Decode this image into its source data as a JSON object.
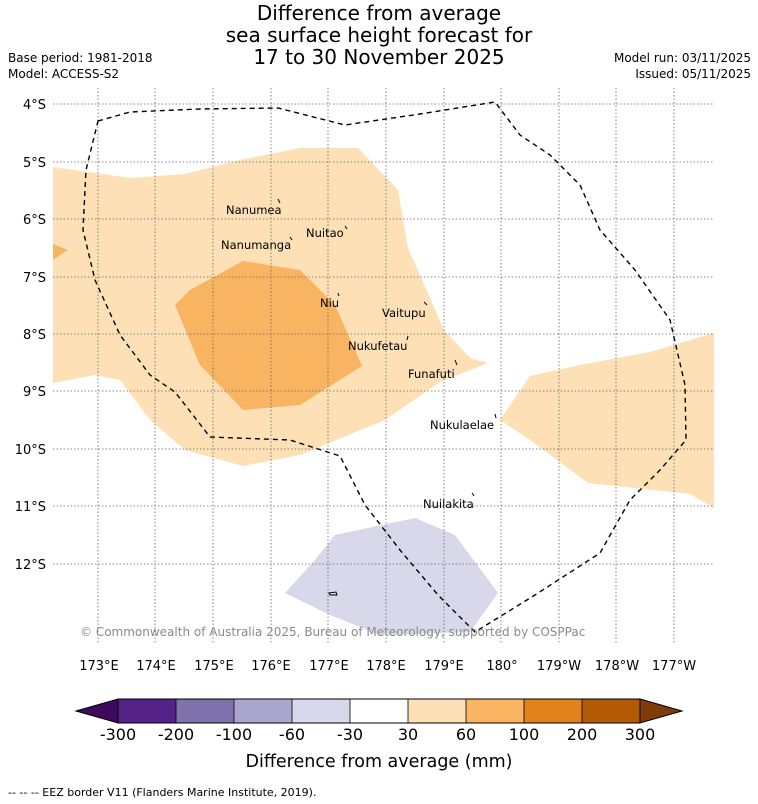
{
  "title": {
    "line1": "Difference from average",
    "line2": "sea surface height forecast for",
    "line3": "17 to 30 November 2025"
  },
  "meta": {
    "base_period": "Base period: 1981-2018",
    "model": "Model: ACCESS-S2",
    "model_run": "Model run: 03/11/2025",
    "issued": "Issued: 05/11/2025"
  },
  "map": {
    "lat_labels": [
      "4°S",
      "5°S",
      "6°S",
      "7°S",
      "8°S",
      "9°S",
      "10°S",
      "11°S",
      "12°S"
    ],
    "lon_labels": [
      "173°E",
      "174°E",
      "175°E",
      "176°E",
      "177°E",
      "178°E",
      "179°E",
      "180°",
      "179°W",
      "178°W",
      "177°W"
    ],
    "places": [
      "Nanumea",
      "Nuitao",
      "Nanumanga",
      "Niu",
      "Vaitupu",
      "Nukufetau",
      "Funafuti",
      "Nukulaelae",
      "Nuilakita"
    ],
    "copyright": "© Commonwealth of Australia 2025, Bureau of Meteorology, supported by COSPPac"
  },
  "colorbar": {
    "ticks": [
      "-300",
      "-200",
      "-100",
      "-60",
      "-30",
      "30",
      "60",
      "100",
      "200",
      "300"
    ],
    "colors": [
      "#3f0a5e",
      "#552288",
      "#8072ad",
      "#aba6cf",
      "#d8d8ea",
      "#ffffff",
      "#fde0b6",
      "#f9b461",
      "#e1821a",
      "#b35a07",
      "#7f3b08"
    ],
    "label": "Difference from average (mm)"
  },
  "footer": "--  --  -- EEZ border V11 (Flanders Marine Institute, 2019)."
}
